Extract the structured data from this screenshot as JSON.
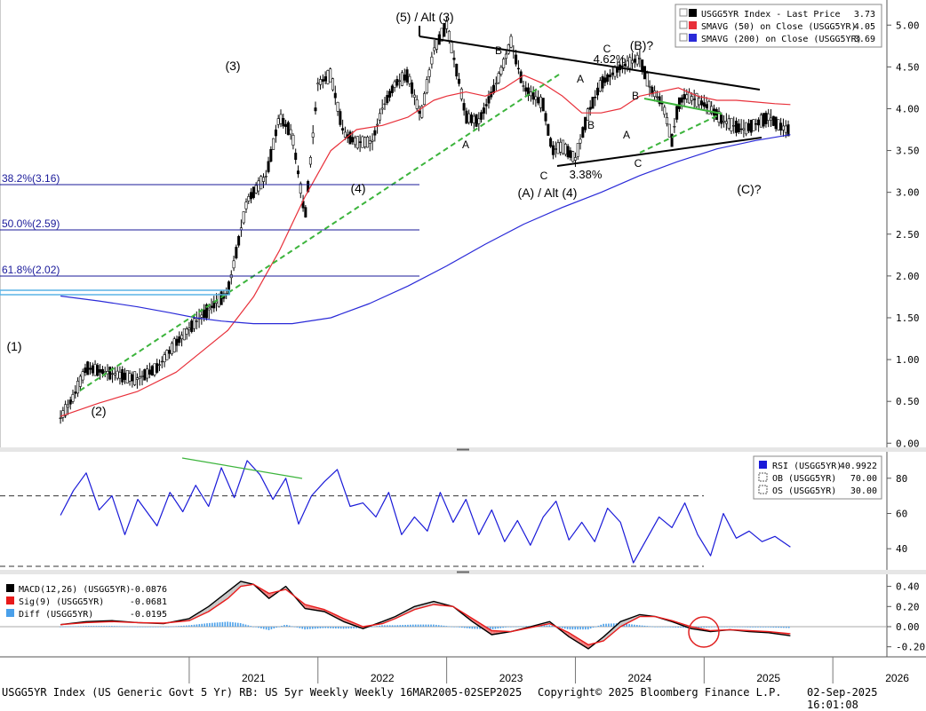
{
  "chart_data": [
    {
      "type": "line",
      "panel": "price",
      "legend": [
        {
          "label": "USGG5YR Index - Last Price",
          "value": "3.73",
          "color": "#000000"
        },
        {
          "label": "SMAVG (50)  on Close (USGG5YR)",
          "value": "4.05",
          "color": "#e8303a"
        },
        {
          "label": "SMAVG (200)  on Close (USGG5YR)",
          "value": "3.69",
          "color": "#2a2ad8"
        }
      ],
      "ylim": [
        -0.05,
        5.3
      ],
      "y_ticks": [
        "5.00",
        "4.50",
        "4.00",
        "3.50",
        "3.00",
        "2.50",
        "2.00",
        "1.50",
        "1.00",
        "0.50",
        "0.00"
      ],
      "x_ticks": [
        "2021",
        "2022",
        "2023",
        "2024",
        "2025",
        "2026"
      ],
      "series": [
        {
          "name": "USGG5YR Index - Last Price",
          "color": "#000000",
          "x": [
            2020.0,
            2020.1,
            2020.2,
            2020.35,
            2020.5,
            2020.6,
            2020.75,
            2020.9,
            2021.05,
            2021.15,
            2021.3,
            2021.45,
            2021.6,
            2021.7,
            2021.8,
            2021.9,
            2022.0,
            2022.1,
            2022.2,
            2022.3,
            2022.42,
            2022.5,
            2022.6,
            2022.7,
            2022.8,
            2022.9,
            2023.0,
            2023.1,
            2023.15,
            2023.25,
            2023.4,
            2023.5,
            2023.6,
            2023.75,
            2023.82,
            2023.9,
            2024.0,
            2024.1,
            2024.2,
            2024.35,
            2024.5,
            2024.58,
            2024.68,
            2024.75,
            2024.8,
            2024.85,
            2024.95,
            2025.05,
            2025.15,
            2025.3,
            2025.38,
            2025.5,
            2025.6,
            2025.67
          ],
          "values": [
            0.3,
            0.55,
            0.9,
            0.85,
            0.8,
            0.77,
            0.9,
            1.2,
            1.45,
            1.6,
            1.8,
            2.9,
            3.2,
            3.9,
            3.7,
            2.7,
            4.3,
            4.4,
            3.7,
            3.6,
            3.6,
            4.0,
            4.3,
            4.4,
            3.9,
            4.7,
            5.0,
            4.3,
            3.9,
            3.85,
            4.35,
            4.8,
            4.25,
            4.05,
            3.5,
            3.55,
            3.4,
            3.95,
            4.3,
            4.5,
            4.6,
            4.25,
            4.05,
            3.62,
            4.05,
            4.15,
            4.1,
            4.0,
            3.85,
            3.75,
            3.8,
            3.9,
            3.78,
            3.73
          ]
        },
        {
          "name": "SMAVG (50)  on Close (USGG5YR)",
          "color": "#e8303a",
          "x": [
            2020.0,
            2020.3,
            2020.6,
            2020.9,
            2021.1,
            2021.3,
            2021.5,
            2021.7,
            2021.9,
            2022.1,
            2022.3,
            2022.5,
            2022.7,
            2022.9,
            2023.0,
            2023.15,
            2023.3,
            2023.45,
            2023.6,
            2023.75,
            2023.9,
            2024.05,
            2024.2,
            2024.35,
            2024.5,
            2024.65,
            2024.8,
            2024.95,
            2025.1,
            2025.25,
            2025.4,
            2025.55,
            2025.67
          ],
          "values": [
            0.32,
            0.48,
            0.62,
            0.85,
            1.1,
            1.35,
            1.75,
            2.3,
            2.95,
            3.5,
            3.75,
            3.8,
            3.9,
            4.1,
            4.15,
            4.2,
            4.15,
            4.25,
            4.4,
            4.3,
            4.15,
            3.95,
            3.95,
            4.0,
            4.15,
            4.2,
            4.25,
            4.15,
            4.1,
            4.1,
            4.08,
            4.06,
            4.05
          ]
        },
        {
          "name": "SMAVG (200)  on Close (USGG5YR)",
          "color": "#2a2ad8",
          "x": [
            2020.0,
            2020.3,
            2020.6,
            2020.85,
            2021.05,
            2021.25,
            2021.5,
            2021.8,
            2022.1,
            2022.4,
            2022.7,
            2023.0,
            2023.3,
            2023.6,
            2023.9,
            2024.2,
            2024.5,
            2024.8,
            2025.1,
            2025.4,
            2025.67
          ],
          "values": [
            1.76,
            1.7,
            1.63,
            1.56,
            1.5,
            1.46,
            1.43,
            1.43,
            1.5,
            1.67,
            1.88,
            2.12,
            2.38,
            2.62,
            2.82,
            3.0,
            3.2,
            3.37,
            3.52,
            3.62,
            3.69
          ]
        }
      ]
    },
    {
      "type": "line",
      "panel": "rsi",
      "legend": [
        {
          "label": "RSI (USGG5YR)",
          "value": "40.9922",
          "color": "#1a1ad8"
        },
        {
          "label": "OB (USGG5YR)",
          "value": "70.00",
          "color": "#000000"
        },
        {
          "label": "OS (USGG5YR)",
          "value": "30.00",
          "color": "#000000"
        }
      ],
      "ylim": [
        28,
        95
      ],
      "y_ticks": [
        "80",
        "60",
        "40"
      ],
      "series": [
        {
          "name": "RSI (USGG5YR)",
          "color": "#1a1ad8",
          "x": [
            2020.0,
            2020.1,
            2020.2,
            2020.3,
            2020.4,
            2020.5,
            2020.6,
            2020.75,
            2020.85,
            2020.95,
            2021.05,
            2021.15,
            2021.25,
            2021.35,
            2021.45,
            2021.55,
            2021.65,
            2021.75,
            2021.85,
            2021.95,
            2022.05,
            2022.15,
            2022.25,
            2022.35,
            2022.45,
            2022.55,
            2022.65,
            2022.75,
            2022.85,
            2022.95,
            2023.05,
            2023.15,
            2023.25,
            2023.35,
            2023.45,
            2023.55,
            2023.65,
            2023.75,
            2023.85,
            2023.95,
            2024.05,
            2024.15,
            2024.25,
            2024.35,
            2024.45,
            2024.55,
            2024.65,
            2024.75,
            2024.85,
            2024.95,
            2025.05,
            2025.15,
            2025.25,
            2025.35,
            2025.45,
            2025.55,
            2025.67
          ],
          "values": [
            59,
            73,
            83,
            62,
            70,
            48,
            68,
            53,
            72,
            61,
            76,
            64,
            86,
            69,
            90,
            82,
            68,
            80,
            54,
            70,
            78,
            85,
            64,
            66,
            58,
            72,
            48,
            58,
            50,
            72,
            55,
            68,
            48,
            62,
            44,
            56,
            42,
            58,
            67,
            45,
            55,
            44,
            63,
            55,
            32,
            45,
            58,
            52,
            66,
            48,
            36,
            60,
            46,
            50,
            44,
            47,
            41
          ]
        }
      ],
      "annotations": [
        "70",
        "30"
      ]
    },
    {
      "type": "line",
      "panel": "macd",
      "legend": [
        {
          "label": "MACD(12,26) (USGG5YR)",
          "value": "-0.0876",
          "color": "#000000"
        },
        {
          "label": "Sig(9) (USGG5YR)",
          "value": "-0.0681",
          "color": "#e81a1a"
        },
        {
          "label": "Diff (USGG5YR)",
          "value": "-0.0195",
          "color": "#4aa0ea"
        }
      ],
      "ylim": [
        -0.3,
        0.52
      ],
      "y_ticks": [
        "0.40",
        "0.20",
        "0.00",
        "-0.20"
      ],
      "series": [
        {
          "name": "MACD(12,26) (USGG5YR)",
          "color": "#000000",
          "x": [
            2020.0,
            2020.2,
            2020.4,
            2020.6,
            2020.8,
            2021.0,
            2021.15,
            2021.3,
            2021.4,
            2021.5,
            2021.62,
            2021.75,
            2021.9,
            2022.05,
            2022.2,
            2022.35,
            2022.5,
            2022.6,
            2022.75,
            2022.9,
            2023.05,
            2023.2,
            2023.35,
            2023.5,
            2023.65,
            2023.8,
            2023.95,
            2024.1,
            2024.22,
            2024.35,
            2024.5,
            2024.62,
            2024.75,
            2024.9,
            2025.05,
            2025.2,
            2025.35,
            2025.5,
            2025.67
          ],
          "values": [
            0.02,
            0.05,
            0.06,
            0.04,
            0.03,
            0.08,
            0.2,
            0.35,
            0.45,
            0.42,
            0.28,
            0.4,
            0.18,
            0.15,
            0.05,
            -0.02,
            0.05,
            0.1,
            0.2,
            0.25,
            0.2,
            0.05,
            -0.08,
            -0.05,
            0.0,
            0.05,
            -0.1,
            -0.22,
            -0.1,
            0.05,
            0.12,
            0.1,
            0.05,
            -0.02,
            -0.05,
            -0.03,
            -0.05,
            -0.06,
            -0.09
          ]
        },
        {
          "name": "Sig(9) (USGG5YR)",
          "color": "#e81a1a",
          "x": [
            2020.0,
            2020.2,
            2020.4,
            2020.6,
            2020.8,
            2021.0,
            2021.15,
            2021.3,
            2021.4,
            2021.5,
            2021.62,
            2021.75,
            2021.9,
            2022.05,
            2022.2,
            2022.35,
            2022.5,
            2022.6,
            2022.75,
            2022.9,
            2023.05,
            2023.2,
            2023.35,
            2023.5,
            2023.65,
            2023.8,
            2023.95,
            2024.1,
            2024.22,
            2024.35,
            2024.5,
            2024.62,
            2024.75,
            2024.9,
            2025.05,
            2025.2,
            2025.35,
            2025.5,
            2025.67
          ],
          "values": [
            0.02,
            0.04,
            0.05,
            0.04,
            0.035,
            0.06,
            0.15,
            0.28,
            0.4,
            0.42,
            0.33,
            0.37,
            0.22,
            0.17,
            0.08,
            0.0,
            0.03,
            0.08,
            0.17,
            0.22,
            0.2,
            0.08,
            -0.04,
            -0.05,
            -0.01,
            0.03,
            -0.06,
            -0.18,
            -0.14,
            0.0,
            0.1,
            0.1,
            0.06,
            0.0,
            -0.04,
            -0.03,
            -0.04,
            -0.05,
            -0.07
          ]
        }
      ]
    }
  ],
  "annotations": {
    "waves": [
      "(5) / Alt (3)",
      "(3)",
      "(1)",
      "(2)",
      "(4)",
      "(A) / Alt (4)",
      "(B)?",
      "(C)?",
      "A",
      "B",
      "C",
      "A",
      "B",
      "C",
      "A",
      "B",
      "C",
      "3.38%",
      "4.62%"
    ],
    "fib_levels": [
      "38.2%(3.16)",
      "50.0%(2.59)",
      "61.8%(2.02)"
    ]
  },
  "footer": {
    "left": "USGG5YR Index (US Generic Govt 5 Yr) RB: US 5yr Weekly  Weekly 16MAR2005-02SEP2025",
    "center": "Copyright© 2025 Bloomberg Finance L.P.",
    "right": "02-Sep-2025 16:01:08"
  }
}
